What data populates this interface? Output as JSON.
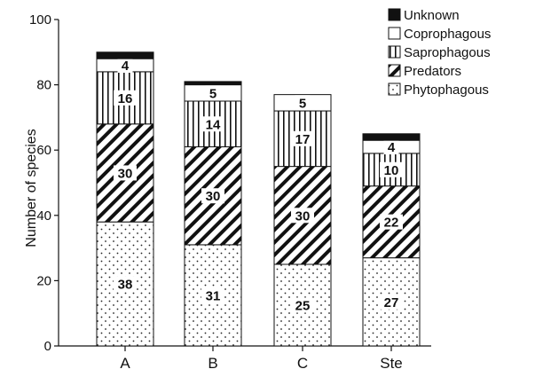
{
  "chart_data": {
    "type": "bar",
    "stacked": true,
    "categories": [
      "A",
      "B",
      "C",
      "Ste"
    ],
    "ylabel": "Number of species",
    "xlabel": "",
    "ylim": [
      0,
      100
    ],
    "yticks": [
      "0",
      "20",
      "40",
      "60",
      "80",
      "100"
    ],
    "grid": false,
    "legend_position": "top-right",
    "series": [
      {
        "name": "Phytophagous",
        "values": [
          38,
          31,
          25,
          27
        ],
        "labels": [
          "38",
          "31",
          "25",
          "27"
        ],
        "pattern": "dots"
      },
      {
        "name": "Predators",
        "values": [
          30,
          30,
          30,
          22
        ],
        "labels": [
          "30",
          "30",
          "30",
          "22"
        ],
        "pattern": "diagonal"
      },
      {
        "name": "Saprophagous",
        "values": [
          16,
          14,
          17,
          10
        ],
        "labels": [
          "16",
          "14",
          "17",
          "10"
        ],
        "pattern": "vertical"
      },
      {
        "name": "Coprophagous",
        "values": [
          4,
          5,
          5,
          4
        ],
        "labels": [
          "4",
          "5",
          "5",
          "4"
        ],
        "pattern": "white"
      },
      {
        "name": "Unknown",
        "values": [
          2,
          1,
          0,
          2
        ],
        "labels": [
          "",
          "",
          "",
          ""
        ],
        "pattern": "black"
      }
    ],
    "legend_order": [
      "Unknown",
      "Coprophagous",
      "Saprophagous",
      "Predators",
      "Phytophagous"
    ]
  }
}
